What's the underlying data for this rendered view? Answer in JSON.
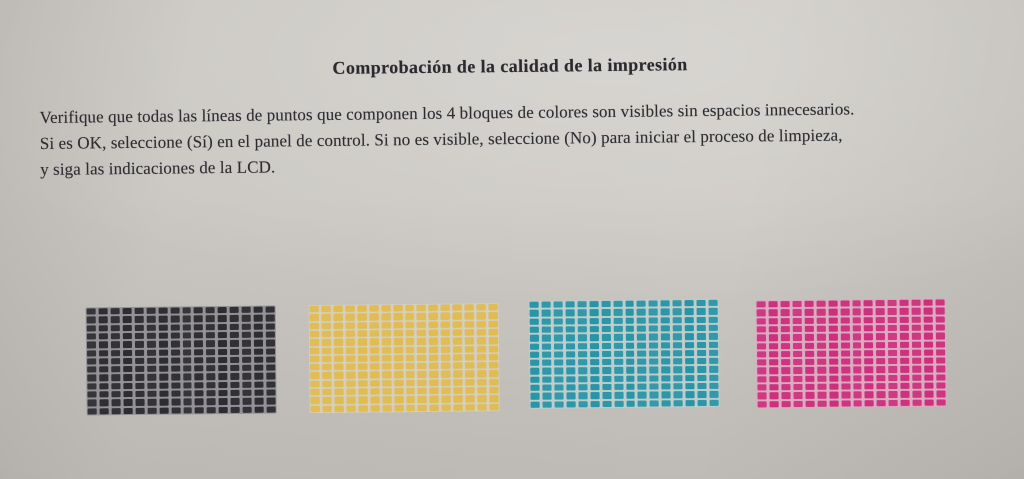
{
  "document": {
    "title": "Comprobación de la calidad de la impresión",
    "instructions": [
      "Verifique que todas las líneas de puntos que componen los 4 bloques de colores son visibles sin espacios innecesarios.",
      "Si es OK, seleccione (Sí) en el panel de control. Si no es visible, seleccione (No) para iniciar el proceso de limpieza,",
      "y siga las indicaciones de la LCD."
    ]
  },
  "test_pattern": {
    "block_count": 4,
    "columns": 16,
    "rows": 13,
    "blocks": [
      {
        "name": "black",
        "dash_color": "#2c2b2f",
        "gap_color": "#949296"
      },
      {
        "name": "yellow",
        "dash_color": "#e2bc4e",
        "gap_color": "#d8cfb6"
      },
      {
        "name": "cyan",
        "dash_color": "#2695a7",
        "gap_color": "#bccecd"
      },
      {
        "name": "magenta",
        "dash_color": "#ce2e7c",
        "gap_color": "#dcabc2"
      }
    ]
  },
  "photo": {
    "paper_color": "#cdcac5",
    "text_color": "#2e2d31"
  }
}
